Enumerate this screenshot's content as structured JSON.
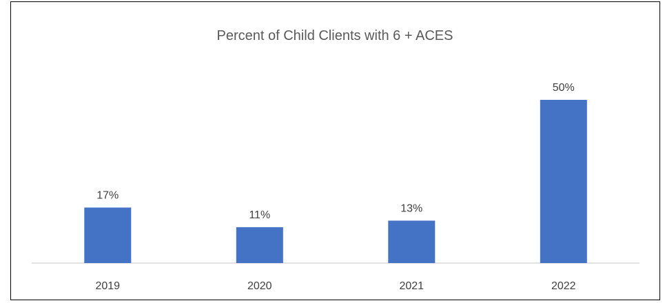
{
  "chart_data": {
    "type": "bar",
    "title": "Percent of Child Clients with 6 + ACES",
    "categories": [
      "2019",
      "2020",
      "2021",
      "2022"
    ],
    "values": [
      17,
      11,
      13,
      50
    ],
    "data_labels": [
      "17%",
      "11%",
      "13%",
      "50%"
    ],
    "xlabel": "",
    "ylabel": "",
    "ylim": [
      0,
      60
    ],
    "grid": false,
    "legend": "none",
    "colors": {
      "bar": "#4472C4",
      "axis": "#D9D9D9",
      "text": "#404040",
      "title": "#595959",
      "border": "#000000"
    }
  }
}
